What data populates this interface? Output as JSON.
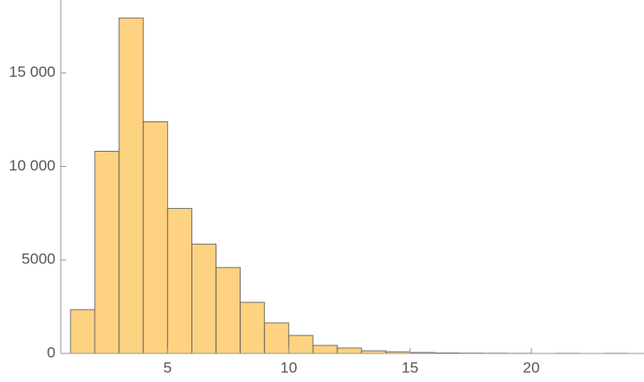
{
  "chart_data": {
    "type": "histogram",
    "bins": [
      1,
      2,
      3,
      4,
      5,
      6,
      7,
      8,
      9,
      10,
      11,
      12,
      13,
      14,
      15,
      16,
      17,
      18,
      19,
      20,
      21,
      22,
      23,
      24
    ],
    "values": [
      2340,
      10810,
      17940,
      12390,
      7750,
      5840,
      4590,
      2730,
      1630,
      960,
      430,
      290,
      140,
      90,
      50,
      30,
      20,
      15,
      10,
      0,
      10,
      0,
      10
    ],
    "color": "#fdd281",
    "xlim": [
      0.6,
      24.5
    ],
    "xticks": [
      5,
      10,
      15,
      20
    ],
    "ylim": [
      0,
      18900
    ],
    "yticks": [
      0,
      5000,
      {
        "value": 10000,
        "label": "10 000"
      },
      {
        "value": 15000,
        "label": "15 000"
      }
    ]
  }
}
